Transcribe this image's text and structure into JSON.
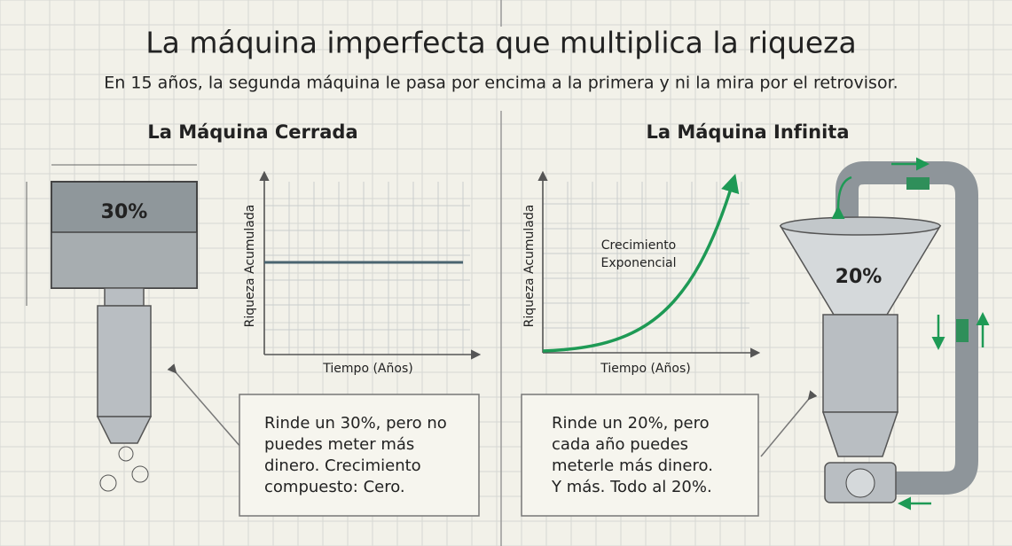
{
  "header": {
    "title": "La máquina imperfecta que multiplica la riqueza",
    "subtitle": "En 15 años, la segunda máquina le pasa por encima a la primera y ni la mira por el retrovisor."
  },
  "panels": [
    {
      "title": "La Máquina Cerrada",
      "machine_label": "30%",
      "chart": {
        "y_label": "Riqueza Acumulada",
        "x_label": "Tiempo (Años)"
      },
      "note": [
        "Rinde un 30%, pero no",
        "puedes meter más",
        "dinero. Crecimiento",
        "compuesto: Cero."
      ]
    },
    {
      "title": "La Máquina Infinita",
      "machine_label": "20%",
      "chart": {
        "y_label": "Riqueza Acumulada",
        "x_label": "Tiempo (Años)",
        "annotation": [
          "Crecimiento",
          "Exponencial"
        ]
      },
      "note": [
        "Rinde un 20%, pero",
        "cada año puedes",
        "meterle más dinero.",
        "Y más. Todo al 20%."
      ]
    }
  ]
}
